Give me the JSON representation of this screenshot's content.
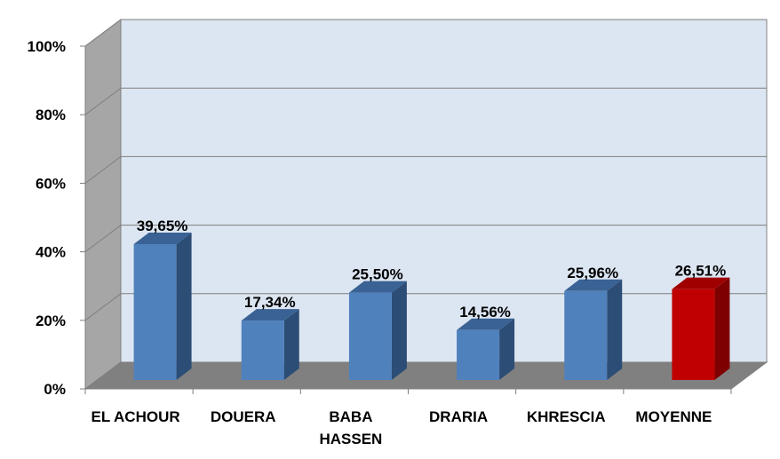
{
  "chart_data": {
    "type": "bar",
    "categories": [
      "EL ACHOUR",
      "DOUERA",
      "BABA HASSEN",
      "DRARIA",
      "KHRESCIA",
      "MOYENNE"
    ],
    "category_lines": [
      [
        "EL ACHOUR"
      ],
      [
        "DOUERA"
      ],
      [
        "BABA",
        "HASSEN"
      ],
      [
        "DRARIA"
      ],
      [
        "KHRESCIA"
      ],
      [
        "MOYENNE"
      ]
    ],
    "values": [
      39.65,
      17.34,
      25.5,
      14.56,
      25.96,
      26.51
    ],
    "value_labels": [
      "39,65%",
      "17,34%",
      "25,50%",
      "14,56%",
      "25,96%",
      "26,51%"
    ],
    "y_ticks": [
      "0%",
      "20%",
      "40%",
      "60%",
      "80%",
      "100%"
    ],
    "ylim": [
      0,
      100
    ],
    "grid": true,
    "legend": "none",
    "title": "",
    "xlabel": "",
    "ylabel": "",
    "colors": {
      "bar": "#4f81bd",
      "bar_side": "#2c4d75",
      "bar_top": "#3a6294",
      "highlight": "#c00000",
      "highlight_side": "#7f0000",
      "highlight_top": "#a00000",
      "back_wall": "#dce6f2",
      "side_wall": "#a6a6a6",
      "floor": "#808080",
      "gridline": "#7f7f7f"
    },
    "highlight_index": 5
  }
}
